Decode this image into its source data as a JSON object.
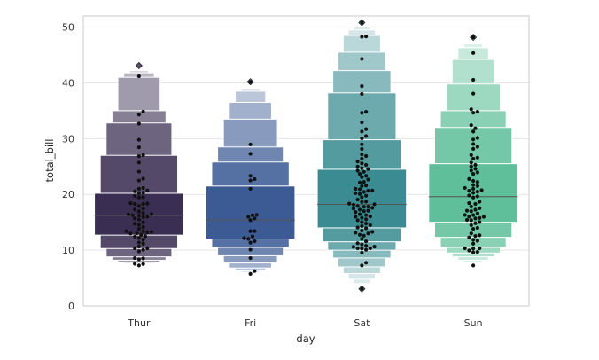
{
  "chart_data": {
    "type": "boxenplot",
    "title": "",
    "xlabel": "day",
    "ylabel": "total_bill",
    "ylim": [
      0,
      52
    ],
    "yticks": [
      0,
      10,
      20,
      30,
      40,
      50
    ],
    "grid": true,
    "categories": [
      "Thur",
      "Fri",
      "Sat",
      "Sun"
    ],
    "colors": [
      "#3a2e52",
      "#3c5b95",
      "#3a8c92",
      "#5fbf9a"
    ],
    "series": [
      {
        "category": "Thur",
        "median": 16.2,
        "boxes": [
          {
            "low": 12.7,
            "high": 20.2
          },
          {
            "low": 10.3,
            "high": 27.0
          },
          {
            "low": 8.8,
            "high": 32.8
          },
          {
            "low": 8.2,
            "high": 35.0
          },
          {
            "low": 7.8,
            "high": 41.0
          },
          {
            "low": 7.6,
            "high": 41.8
          },
          {
            "low": 7.5,
            "high": 42.2
          }
        ],
        "outliers": [
          43.1
        ],
        "points": [
          7.25,
          7.51,
          7.56,
          8.35,
          8.52,
          8.58,
          9.78,
          10.07,
          10.33,
          10.34,
          10.65,
          11.17,
          11.38,
          11.87,
          12.16,
          12.43,
          12.48,
          12.74,
          13.0,
          13.03,
          13.16,
          13.27,
          13.39,
          13.42,
          13.81,
          14.15,
          14.52,
          14.73,
          15.01,
          15.48,
          15.69,
          15.95,
          16.0,
          16.21,
          16.27,
          16.43,
          16.47,
          16.66,
          16.93,
          17.29,
          17.47,
          17.92,
          18.28,
          18.29,
          18.35,
          18.43,
          19.44,
          19.49,
          19.77,
          20.23,
          20.29,
          20.53,
          20.69,
          21.01,
          21.16,
          22.49,
          22.82,
          24.08,
          25.71,
          26.86,
          27.05,
          28.44,
          29.8,
          32.68,
          34.3,
          34.83,
          41.19
        ]
      },
      {
        "category": "Fri",
        "median": 15.4,
        "boxes": [
          {
            "low": 12.0,
            "high": 21.5
          },
          {
            "low": 10.5,
            "high": 25.8
          },
          {
            "low": 9.0,
            "high": 28.5
          },
          {
            "low": 7.7,
            "high": 33.5
          },
          {
            "low": 6.8,
            "high": 36.5
          },
          {
            "low": 6.3,
            "high": 38.5
          },
          {
            "low": 6.0,
            "high": 39.0
          }
        ],
        "outliers": [
          40.2
        ],
        "points": [
          5.75,
          6.25,
          8.58,
          10.09,
          11.35,
          11.61,
          12.03,
          12.16,
          12.46,
          13.42,
          13.42,
          15.38,
          15.69,
          15.98,
          16.27,
          16.32,
          21.01,
          22.49,
          22.75,
          23.33,
          27.28,
          28.97,
          40.17
        ]
      },
      {
        "category": "Sat",
        "median": 18.2,
        "boxes": [
          {
            "low": 14.0,
            "high": 24.5
          },
          {
            "low": 11.5,
            "high": 29.8
          },
          {
            "low": 10.0,
            "high": 38.2
          },
          {
            "low": 8.6,
            "high": 42.2
          },
          {
            "low": 7.0,
            "high": 45.5
          },
          {
            "low": 5.8,
            "high": 48.5
          },
          {
            "low": 4.8,
            "high": 49.5
          },
          {
            "low": 4.0,
            "high": 50.0
          }
        ],
        "outliers": [
          3.07,
          50.81
        ],
        "points": [
          3.07,
          7.25,
          7.74,
          9.55,
          10.07,
          10.29,
          10.33,
          10.34,
          10.59,
          10.63,
          10.77,
          11.02,
          11.24,
          11.59,
          12.02,
          12.6,
          12.76,
          13.0,
          13.13,
          13.28,
          13.51,
          13.94,
          14.07,
          14.31,
          14.48,
          14.78,
          15.04,
          15.36,
          15.53,
          15.81,
          16.0,
          16.04,
          16.29,
          16.45,
          16.82,
          16.99,
          17.07,
          17.26,
          17.46,
          17.59,
          17.78,
          17.81,
          17.92,
          18.15,
          18.24,
          18.35,
          18.64,
          18.71,
          19.08,
          19.49,
          19.77,
          20.08,
          20.23,
          20.45,
          20.65,
          20.69,
          20.92,
          21.01,
          21.5,
          21.58,
          22.12,
          22.23,
          22.67,
          23.1,
          23.33,
          23.68,
          24.06,
          24.27,
          24.55,
          24.71,
          25.0,
          25.28,
          25.56,
          25.89,
          26.41,
          26.88,
          27.18,
          28.15,
          28.97,
          30.06,
          30.46,
          31.27,
          31.71,
          32.9,
          34.63,
          34.81,
          38.01,
          39.42,
          44.3,
          48.27,
          48.33,
          50.81
        ]
      },
      {
        "category": "Sun",
        "median": 19.6,
        "boxes": [
          {
            "low": 15.0,
            "high": 25.5
          },
          {
            "low": 12.3,
            "high": 32.0
          },
          {
            "low": 10.5,
            "high": 35.0
          },
          {
            "low": 9.5,
            "high": 39.8
          },
          {
            "low": 8.8,
            "high": 44.2
          },
          {
            "low": 8.2,
            "high": 46.3
          },
          {
            "low": 7.8,
            "high": 47.0
          }
        ],
        "outliers": [
          48.17
        ],
        "points": [
          7.25,
          9.6,
          9.94,
          10.29,
          10.33,
          10.34,
          11.17,
          11.69,
          12.54,
          12.66,
          13.81,
          14.0,
          14.83,
          15.04,
          15.42,
          15.69,
          15.77,
          16.0,
          16.29,
          16.31,
          16.58,
          16.97,
          17.26,
          17.51,
          17.81,
          18.43,
          18.69,
          19.65,
          19.81,
          20.29,
          20.65,
          20.76,
          21.01,
          21.16,
          21.7,
          22.23,
          22.42,
          22.76,
          23.68,
          23.95,
          24.59,
          25.0,
          25.29,
          25.71,
          26.41,
          26.59,
          27.05,
          28.17,
          29.03,
          29.85,
          30.14,
          31.85,
          32.4,
          34.65,
          34.81,
          35.26,
          38.07,
          40.55,
          45.35,
          48.17,
          9.68,
          11.87,
          12.26,
          13.0,
          14.48,
          15.36,
          15.98,
          17.07,
          18.29,
          19.44,
          20.49,
          21.5,
          24.27,
          28.55,
          31.27
        ]
      }
    ]
  }
}
